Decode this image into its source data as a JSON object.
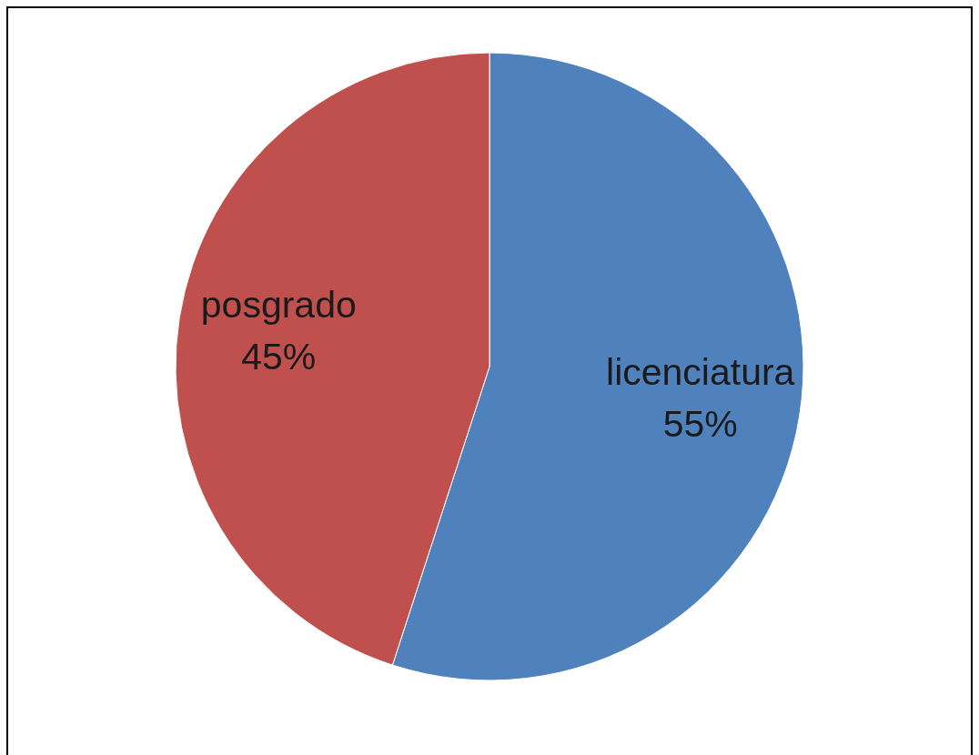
{
  "chart_data": {
    "type": "pie",
    "categories": [
      "licenciatura",
      "posgrado"
    ],
    "values": [
      55,
      45
    ],
    "colors": [
      "#4f81bd",
      "#c0504d"
    ],
    "value_labels": [
      "55%",
      "45%"
    ]
  }
}
